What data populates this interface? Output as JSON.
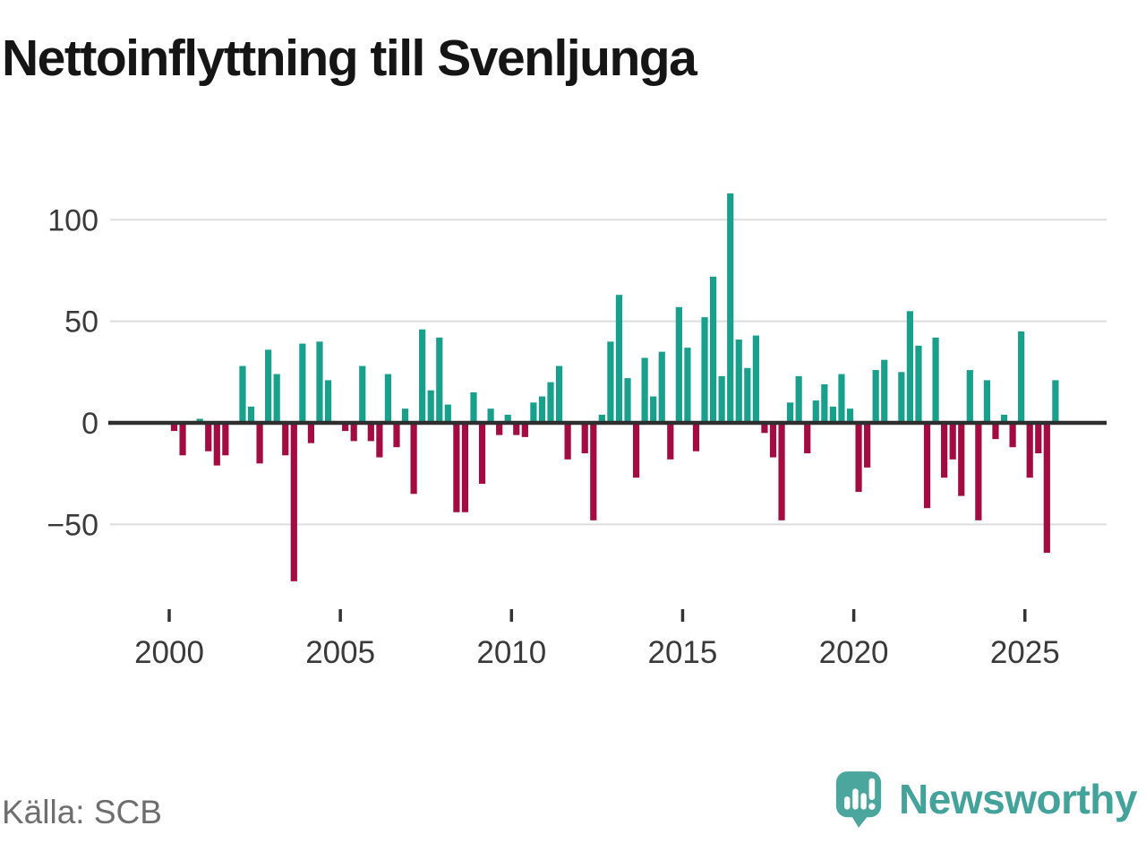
{
  "title": "Nettoinflyttning till Svenljunga",
  "source": {
    "label": "Källa: SCB"
  },
  "branding": {
    "name": "Newsworthy",
    "icon": "newsworthy-speech-bubble-barchart-icon",
    "icon_color": "#4ba69e",
    "text_color": "#43a39b"
  },
  "chart_data": {
    "type": "bar",
    "title": "Nettoinflyttning till Svenljunga",
    "x_unit": "quarter",
    "frequency": "quarterly",
    "start": "2000-Q1",
    "end": "2025-Q4",
    "grid": true,
    "legend": "none",
    "ylim": [
      -80,
      115
    ],
    "y_ticks": [
      {
        "value": 100,
        "label": "100"
      },
      {
        "value": 50,
        "label": "50"
      },
      {
        "value": 0,
        "label": "0"
      },
      {
        "value": -50,
        "label": "−50"
      }
    ],
    "x_ticks": [
      {
        "year": 2000,
        "label": "2000"
      },
      {
        "year": 2005,
        "label": "2005"
      },
      {
        "year": 2010,
        "label": "2010"
      },
      {
        "year": 2015,
        "label": "2015"
      },
      {
        "year": 2020,
        "label": "2020"
      },
      {
        "year": 2025,
        "label": "2025"
      }
    ],
    "colors": {
      "positive": "#18a08d",
      "negative": "#a30c40",
      "axis": "#2e2e2e",
      "gridline": "#dedede",
      "tick_label": "#3a3a3a"
    },
    "series": [
      {
        "name": "Nettoinflyttning",
        "start_year": 2000,
        "values_per_year": 4,
        "values": [
          -4,
          -16,
          0,
          2,
          -14,
          -21,
          -16,
          0,
          28,
          8,
          -20,
          36,
          24,
          -16,
          -78,
          39,
          -10,
          40,
          21,
          0,
          -4,
          -9,
          28,
          -9,
          -17,
          24,
          -12,
          7,
          -35,
          46,
          16,
          42,
          9,
          -44,
          -44,
          15,
          -30,
          7,
          -6,
          4,
          -6,
          -7,
          10,
          13,
          20,
          28,
          -18,
          0,
          -15,
          -48,
          4,
          40,
          63,
          22,
          -27,
          32,
          13,
          35,
          -18,
          57,
          37,
          -14,
          52,
          72,
          23,
          113,
          41,
          27,
          43,
          -5,
          -17,
          -48,
          10,
          23,
          -15,
          11,
          19,
          8,
          24,
          7,
          -34,
          -22,
          26,
          31,
          0,
          25,
          55,
          38,
          -42,
          42,
          -27,
          -18,
          -36,
          26,
          -48,
          21,
          -8,
          4,
          -12,
          45,
          -27,
          -15,
          -64,
          21
        ]
      }
    ]
  }
}
